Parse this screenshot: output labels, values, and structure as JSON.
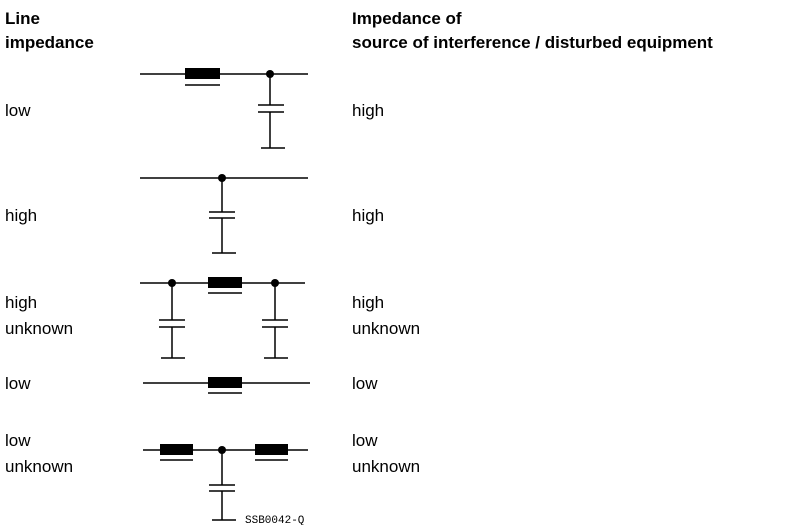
{
  "headers": {
    "left": [
      "Line",
      "impedance"
    ],
    "right": [
      "Impedance of",
      "source of interference / disturbed equipment"
    ]
  },
  "rows": [
    {
      "left": [
        "low"
      ],
      "right": [
        "high"
      ]
    },
    {
      "left": [
        "high"
      ],
      "right": [
        "high"
      ]
    },
    {
      "left": [
        "high",
        "unknown"
      ],
      "right": [
        "high",
        "unknown"
      ]
    },
    {
      "left": [
        "low"
      ],
      "right": [
        "low"
      ]
    },
    {
      "left": [
        "low",
        "unknown"
      ],
      "right": [
        "low",
        "unknown"
      ]
    }
  ],
  "figure_code": "SSB0042-Q"
}
